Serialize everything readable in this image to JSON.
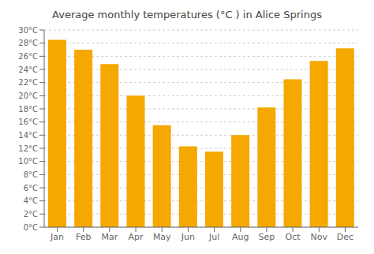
{
  "chart_data": {
    "type": "bar",
    "title": "Average monthly temperatures (°C ) in Alice Springs",
    "categories": [
      "Jan",
      "Feb",
      "Mar",
      "Apr",
      "May",
      "Jun",
      "Jul",
      "Aug",
      "Sep",
      "Oct",
      "Nov",
      "Dec"
    ],
    "values": [
      28.5,
      27.0,
      24.8,
      20.0,
      15.5,
      12.3,
      11.5,
      14.0,
      18.2,
      22.5,
      25.3,
      27.2
    ],
    "color": "#F5A800",
    "ylim": [
      0,
      30
    ],
    "yticks": [
      {
        "value": 0,
        "label": "0°C"
      },
      {
        "value": 2,
        "label": "2°C"
      },
      {
        "value": 4,
        "label": "4°C"
      },
      {
        "value": 6,
        "label": "6°C"
      },
      {
        "value": 8,
        "label": "8°C"
      },
      {
        "value": 10,
        "label": "10°C"
      },
      {
        "value": 12,
        "label": "12°C"
      },
      {
        "value": 14,
        "label": "14°C"
      },
      {
        "value": 16,
        "label": "16°C"
      },
      {
        "value": 18,
        "label": "18°C"
      },
      {
        "value": 20,
        "label": "20°C"
      },
      {
        "value": 22,
        "label": "22°C"
      },
      {
        "value": 24,
        "label": "24°C"
      },
      {
        "value": 26,
        "label": "26°C"
      },
      {
        "value": 28,
        "label": "28°C"
      },
      {
        "value": 30,
        "label": "30°C"
      }
    ],
    "grid": true
  }
}
